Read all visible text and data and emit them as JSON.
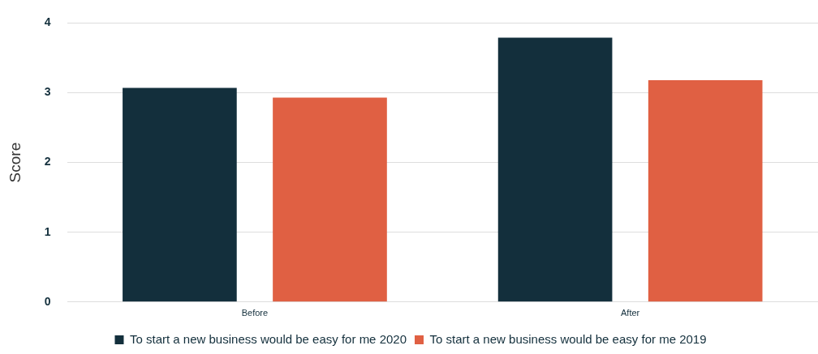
{
  "chart_data": {
    "type": "bar",
    "ylabel": "Score",
    "categories": [
      "Before",
      "After"
    ],
    "series": [
      {
        "name": "To start a new business would be easy for me 2020",
        "color": "#132f3c",
        "values": [
          3.07,
          3.79
        ]
      },
      {
        "name": "To start a new business would be easy for me 2019",
        "color": "#e06043",
        "values": [
          2.93,
          3.18
        ]
      }
    ],
    "ylim": [
      0,
      4
    ],
    "yticks": [
      0,
      1,
      2,
      3,
      4
    ],
    "grid": "y",
    "legend": "bottom"
  }
}
